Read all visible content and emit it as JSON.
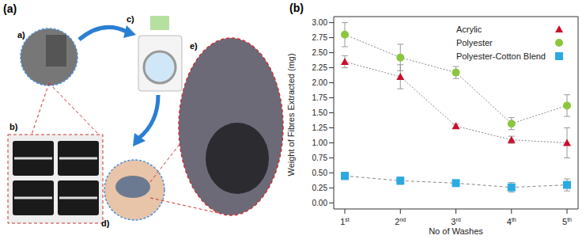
{
  "figure": {
    "panel_labels": [
      "(a)",
      "(b)"
    ],
    "image_labels": [
      "a)",
      "b)",
      "c)",
      "d)",
      "e)"
    ]
  },
  "chart_data": {
    "type": "line",
    "x_label": "No of Washes",
    "y_label": "Weight of Fibres Extracted (mg)",
    "categories": [
      "1st",
      "2nd",
      "3rd",
      "4th",
      "5th"
    ],
    "ylim": [
      -0.1,
      3.1
    ],
    "yticks": [
      {
        "value": 0,
        "label": "0.00"
      },
      {
        "value": 0.25,
        "label": "0.25"
      },
      {
        "value": 0.5,
        "label": "0.50"
      },
      {
        "value": 0.75,
        "label": "0.75"
      },
      {
        "value": 1,
        "label": "1.00"
      },
      {
        "value": 1.25,
        "label": "1.25"
      },
      {
        "value": 1.5,
        "label": "1.50"
      },
      {
        "value": 1.75,
        "label": "1.75"
      },
      {
        "value": 2,
        "label": "2.00"
      },
      {
        "value": 2.25,
        "label": "2.25"
      },
      {
        "value": 2.5,
        "label": "2.50"
      },
      {
        "value": 2.75,
        "label": "2.75"
      },
      {
        "value": 3,
        "label": "3.00"
      }
    ],
    "legend": "upper right",
    "series": [
      {
        "name": "Acrylic",
        "color": "#c8102e",
        "marker": "triangle",
        "line_style": "dotted",
        "values": [
          2.35,
          2.1,
          1.28,
          1.05,
          1.0
        ],
        "errors": [
          0.1,
          0.2,
          0.03,
          0.06,
          0.25
        ]
      },
      {
        "name": "Polyester",
        "color": "#8cc63f",
        "marker": "circle",
        "line_style": "dotted",
        "values": [
          2.8,
          2.42,
          2.17,
          1.32,
          1.62
        ],
        "errors": [
          0.2,
          0.22,
          0.1,
          0.1,
          0.18
        ]
      },
      {
        "name": "Polyester-Cotton Blend",
        "color": "#29abe2",
        "marker": "square",
        "line_style": "dashed",
        "values": [
          0.45,
          0.37,
          0.33,
          0.26,
          0.3
        ],
        "errors": [
          0.06,
          0.06,
          0.05,
          0.08,
          0.1
        ]
      }
    ]
  }
}
